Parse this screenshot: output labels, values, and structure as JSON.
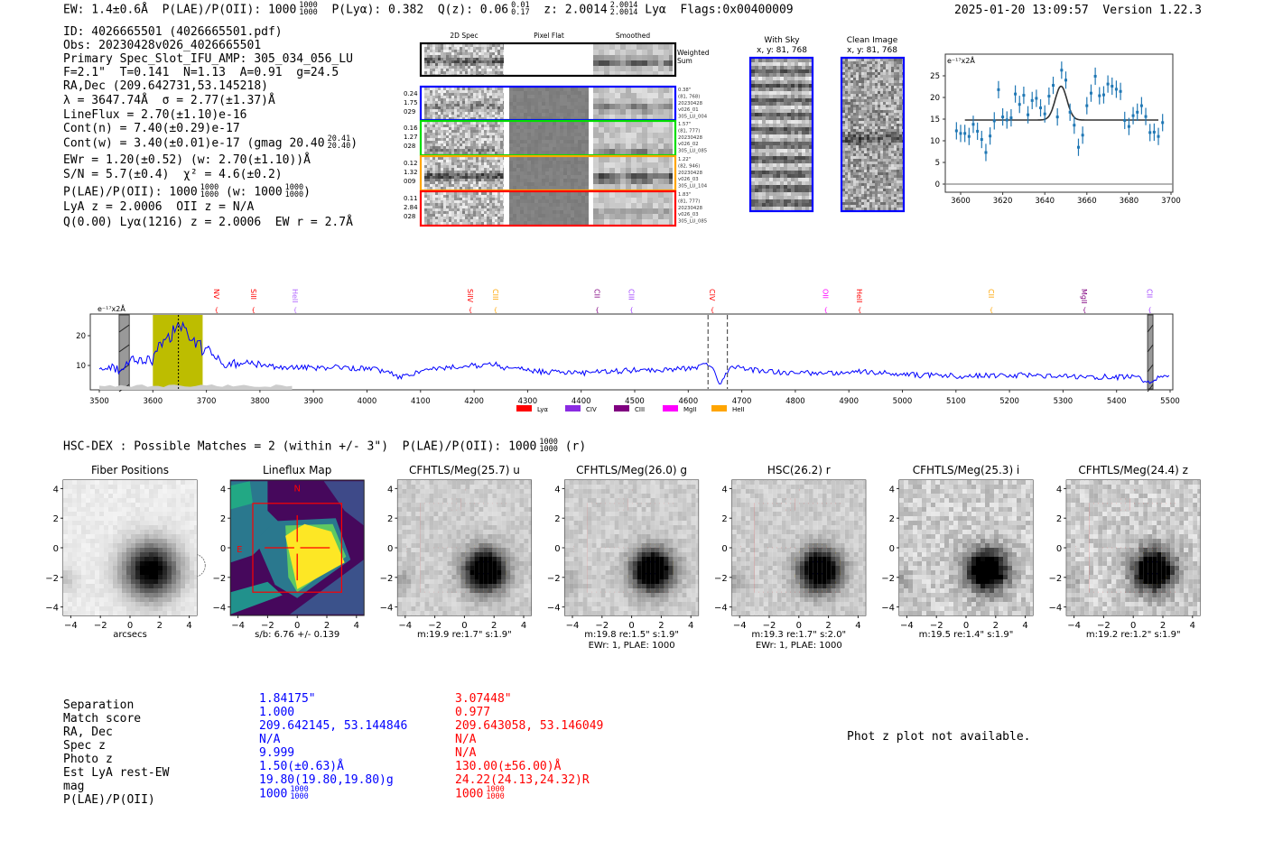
{
  "header": {
    "ew": "EW: 1.4±0.6Å",
    "plae": "P(LAE)/P(OII): 1000",
    "plae_hi": "1000",
    "plae_lo": "1000",
    "plya": "P(Lyα): 0.382",
    "qz": "Q(z): 0.06",
    "qz_hi": "0.01",
    "qz_lo": "0.17",
    "z": "z: 2.0014",
    "z_hi": "2.0014",
    "z_lo": "2.0014",
    "z_line": "Lyα",
    "flags": "Flags:0x00400009",
    "timestamp": "2025-01-20 13:09:57",
    "version": "Version 1.22.3"
  },
  "info": [
    {
      "t": "ID: 4026665501 (4026665501.pdf)"
    },
    {
      "t": "Obs: 20230428v026_4026665501"
    },
    {
      "t": "Primary Spec_Slot_IFU_AMP: 305_034_056_LU"
    },
    {
      "t": "F=2.1\"  T=0.141  N=1.13  A=0.91  g=24.5"
    },
    {
      "t": "RA,Dec (209.642731,53.145218)"
    },
    {
      "t": "λ = 3647.74Å  σ = 2.77(±1.37)Å"
    },
    {
      "t": "LineFlux = 2.70(±1.10)e-16"
    },
    {
      "t": "Cont(n) = 7.40(±0.29)e-17"
    },
    {
      "t": "Cont(w) = 3.40(±0.01)e-17 (gmag 20.40",
      "hi": "20.41",
      "lo": "20.40",
      "t2": ")"
    },
    {
      "t": "EWr = 1.20(±0.52) (w: 2.70(±1.10))Å"
    },
    {
      "t": "S/N = 5.7(±0.4)  χ² = 4.6(±0.2)"
    },
    {
      "t": "P(LAE)/P(OII): 1000",
      "hi": "1000",
      "lo": "1000",
      "t2": " (w: 1000",
      "hi2": "1000",
      "lo2": "1000",
      "t3": ")"
    },
    {
      "t": "LyA z = 2.0006  OII z = N/A"
    },
    {
      "t": "Q(0.00) Lyα(1216) z = 2.0006  EW r = 2.7Å"
    }
  ],
  "spec2d": {
    "columns": [
      "2D Spec",
      "Pixel Flat",
      "Smoothed"
    ],
    "weighted_sum": [
      "Weighted",
      "Sum"
    ],
    "rows": [
      {
        "color": "#0000ff",
        "left": [
          "0.24",
          "1.75",
          "029"
        ],
        "right": [
          "0.38\"",
          "(81, 768)",
          "20230428",
          "v026_01",
          "305_LU_004"
        ]
      },
      {
        "color": "#00dd00",
        "left": [
          "0.16",
          "1.27",
          "028"
        ],
        "right": [
          "1.57\"",
          "(81, 777)",
          "20230428",
          "v026_02",
          "305_LU_085"
        ]
      },
      {
        "color": "#ffa500",
        "left": [
          "0.12",
          "1.32",
          "009"
        ],
        "right": [
          "1.22\"",
          "(82, 946)",
          "20230428",
          "v026_03",
          "305_LU_104"
        ]
      },
      {
        "color": "#ff0000",
        "left": [
          "0.11",
          "2.84",
          "028"
        ],
        "right": [
          "1.83\"",
          "(81, 777)",
          "20230428",
          "v026_03",
          "305_LU_085"
        ]
      }
    ]
  },
  "sky": {
    "with_title": "With Sky",
    "with_xy": "x, y: 81, 768",
    "clean_title": "Clean Image",
    "clean_xy": "x, y: 81, 768"
  },
  "chart_data": [
    {
      "type": "scatter",
      "title": "",
      "ylabel": "e⁻¹⁷x2Å",
      "xlim": [
        3595,
        3700
      ],
      "ylim": [
        -2,
        30
      ],
      "xticks": [
        3600,
        3620,
        3640,
        3660,
        3680,
        3700
      ],
      "yticks": [
        0,
        5,
        10,
        15,
        20,
        25
      ],
      "x": [
        3598,
        3600,
        3602,
        3604,
        3606,
        3608,
        3610,
        3612,
        3614,
        3616,
        3618,
        3620,
        3622,
        3624,
        3626,
        3628,
        3630,
        3632,
        3634,
        3636,
        3638,
        3640,
        3642,
        3644,
        3646,
        3648,
        3650,
        3652,
        3654,
        3656,
        3658,
        3660,
        3662,
        3664,
        3666,
        3668,
        3670,
        3672,
        3674,
        3676,
        3678,
        3680,
        3682,
        3684,
        3686,
        3688,
        3690,
        3692,
        3694,
        3696
      ],
      "y": [
        12.3,
        11.7,
        11.7,
        11.0,
        13.8,
        12.2,
        10.3,
        7.3,
        11.1,
        14.6,
        21.8,
        15.5,
        14.8,
        15.3,
        20.8,
        18.4,
        20.5,
        16.0,
        19.3,
        19.8,
        17.6,
        16.2,
        20.3,
        22.8,
        15.5,
        26.3,
        24.0,
        16.6,
        13.6,
        8.5,
        11.3,
        18.1,
        21.0,
        24.9,
        20.4,
        20.6,
        23.1,
        22.6,
        21.9,
        21.4,
        14.7,
        13.3,
        15.8,
        16.6,
        18.1,
        15.6,
        11.9,
        12.0,
        11.0,
        14.2
      ],
      "yerr": 2.0,
      "fit": {
        "continuum": 14.8,
        "peak": 22.6,
        "center": 3647.74,
        "sigma": 2.77,
        "range": [
          3602,
          3694
        ]
      },
      "colors": {
        "points": "#1f77b4",
        "fit": "#333333"
      }
    },
    {
      "type": "line",
      "ylabel": "e⁻¹⁷x2Å",
      "xlim": [
        3483,
        5505
      ],
      "ylim": [
        1.8,
        27.3
      ],
      "xticks": [
        3500,
        3600,
        3700,
        3800,
        3900,
        4000,
        4100,
        4200,
        4300,
        4400,
        4500,
        4600,
        4700,
        4800,
        4900,
        5000,
        5100,
        5200,
        5300,
        5400,
        5500
      ],
      "yticks": [
        10,
        20
      ],
      "x_start": 3500,
      "x_step": 20,
      "values": [
        9,
        10,
        8,
        13,
        11,
        13,
        20,
        21,
        22,
        17,
        16,
        12,
        10,
        11,
        11,
        10,
        10,
        9,
        9.5,
        9.5,
        9,
        9,
        9.5,
        9,
        9,
        9,
        8.5,
        8,
        6,
        7,
        8,
        9,
        9,
        9.5,
        10,
        10,
        10,
        10.5,
        9,
        9,
        8.5,
        8,
        7.8,
        8,
        7.5,
        7.5,
        7.5,
        8,
        8,
        8.2,
        8.5,
        8.5,
        8.4,
        8.6,
        9,
        9,
        9.5,
        10.5,
        4,
        9.5,
        9,
        8.5,
        8,
        8,
        7.5,
        7.8,
        7.5,
        7.6,
        7.2,
        7.6,
        7.8,
        8,
        7.8,
        7.5,
        7.2,
        7,
        6.8,
        6.6,
        6.8,
        6.6,
        6.5,
        6.4,
        6.6,
        6.8,
        6.5,
        6.6,
        6.8,
        6.5,
        6.4,
        6.3,
        6.5,
        6.4,
        6.2,
        6.0,
        6.3,
        6.0,
        6.1,
        5.8,
        4.5,
        6.5,
        6.0
      ],
      "highlight_band": [
        3600,
        3693
      ],
      "masked_regions": [
        [
          3537,
          3556
        ],
        [
          5458,
          5468
        ]
      ],
      "line_marker": 3647.74,
      "dashed_markers": [
        4637,
        4673
      ],
      "lines": [
        {
          "name": "NV",
          "wave": 3719,
          "color": "#ff0000"
        },
        {
          "name": "SiII",
          "wave": 3788,
          "color": "#ff0000"
        },
        {
          "name": "HeII",
          "wave": 3866,
          "color": "#b266ff"
        },
        {
          "name": "SiIV",
          "wave": 4193,
          "color": "#ff0000"
        },
        {
          "name": "CIII",
          "wave": 4240,
          "color": "#ffa500"
        },
        {
          "name": "CII",
          "wave": 4430,
          "color": "#800080"
        },
        {
          "name": "CIII",
          "wave": 4494,
          "color": "#a040ff"
        },
        {
          "name": "CIV",
          "wave": 4645,
          "color": "#ff0000"
        },
        {
          "name": "OII",
          "wave": 4857,
          "color": "#ff00ff"
        },
        {
          "name": "HeII",
          "wave": 4920,
          "color": "#ff0000"
        },
        {
          "name": "CII",
          "wave": 5166,
          "color": "#ffa500"
        },
        {
          "name": "MgII",
          "wave": 5340,
          "color": "#800080"
        },
        {
          "name": "CII",
          "wave": 5462,
          "color": "#a040ff"
        }
      ],
      "legend": [
        {
          "name": "Lyα",
          "color": "#ff0000"
        },
        {
          "name": "CIV",
          "color": "#8a2be2"
        },
        {
          "name": "CIII",
          "color": "#800080"
        },
        {
          "name": "MgII",
          "color": "#ff00ff"
        },
        {
          "name": "HeII",
          "color": "#ffa500"
        }
      ],
      "legend_position": "bottom-center",
      "colors": {
        "spectrum": "#0000ff",
        "band": "#bdbd00"
      }
    }
  ],
  "hsc": {
    "title": "HSC-DEX : Possible Matches = 2 (within +/- 3\")  P(LAE)/P(OII): 1000",
    "hi": "1000",
    "lo": "1000",
    "tail": " (r)",
    "ticks": [
      "−4",
      "−2",
      "0",
      "2",
      "4"
    ],
    "compass": {
      "n": "N",
      "e": "E"
    },
    "panels": [
      {
        "title": "Fiber Positions",
        "captions": [
          "arcsecs"
        ]
      },
      {
        "title": "Lineflux Map",
        "captions": [
          "s/b: 6.76 +/- 0.139"
        ]
      },
      {
        "title": "CFHTLS/Meg(25.7) u",
        "captions": [
          "m:19.9  re:1.7\"  s:1.9\""
        ]
      },
      {
        "title": "CFHTLS/Meg(26.0) g",
        "captions": [
          "m:19.8  re:1.5\"  s:1.9\"",
          "EWr: 1, PLAE: 1000"
        ]
      },
      {
        "title": "HSC(26.2) r",
        "captions": [
          "m:19.3  re:1.7\"  s:2.0\"",
          "EWr: 1, PLAE: 1000"
        ]
      },
      {
        "title": "CFHTLS/Meg(25.3) i",
        "captions": [
          "m:19.5  re:1.4\"  s:1.9\""
        ]
      },
      {
        "title": "CFHTLS/Meg(24.4) z",
        "captions": [
          "m:19.2  re:1.2\"  s:1.9\""
        ]
      }
    ]
  },
  "matches": {
    "labels": [
      "Separation",
      "Match score",
      "RA, Dec",
      "Spec z",
      "Photo z",
      "Est LyA rest-EW",
      "mag",
      "P(LAE)/P(OII)"
    ],
    "blue": [
      "1.84175\"",
      "1.000",
      "209.642145, 53.144846",
      "N/A",
      "9.999",
      "1.50(±0.63)Å",
      "19.80(19.80,19.80)g",
      {
        "t": "1000",
        "hi": "1000",
        "lo": "1000"
      }
    ],
    "red": [
      "3.07448\"",
      "0.977",
      "209.643058, 53.146049",
      "N/A",
      "N/A",
      "130.00(±56.00)Å",
      "24.22(24.13,24.32)R",
      {
        "t": "1000",
        "hi": "1000",
        "lo": "1000"
      }
    ],
    "colors": {
      "blue": "#0000ff",
      "red": "#ff0000"
    }
  },
  "photz_msg": "Phot z plot not available."
}
